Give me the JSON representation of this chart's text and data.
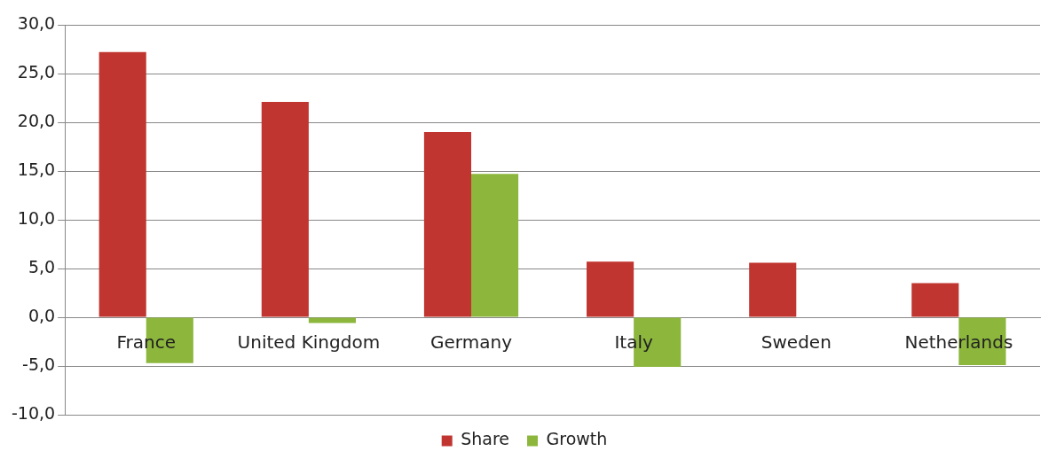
{
  "chart_data": {
    "type": "bar",
    "categories": [
      "France",
      "United Kingdom",
      "Germany",
      "Italy",
      "Sweden",
      "Netherlands"
    ],
    "series": [
      {
        "name": "Share",
        "color": "#c0352f",
        "values": [
          27.2,
          22.1,
          19.0,
          5.7,
          5.6,
          3.5
        ]
      },
      {
        "name": "Growth",
        "color": "#8cb63c",
        "values": [
          -4.7,
          -0.6,
          14.7,
          -5.1,
          null,
          -4.9
        ]
      }
    ],
    "ylim": [
      -10,
      30
    ],
    "yticks": [
      {
        "value": -10,
        "label": "-10,0"
      },
      {
        "value": -5,
        "label": "-5,0"
      },
      {
        "value": 0,
        "label": "0,0"
      },
      {
        "value": 5,
        "label": "5,0"
      },
      {
        "value": 10,
        "label": "10,0"
      },
      {
        "value": 15,
        "label": "15,0"
      },
      {
        "value": 20,
        "label": "20,0"
      },
      {
        "value": 25,
        "label": "25,0"
      },
      {
        "value": 30,
        "label": "30,0"
      }
    ],
    "grid": "y",
    "legend": "bottom"
  }
}
